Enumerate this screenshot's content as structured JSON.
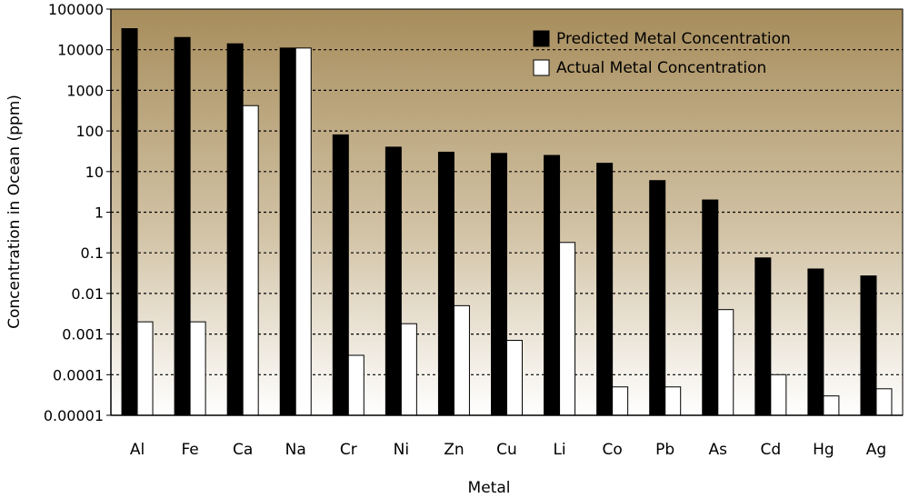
{
  "chart_data": {
    "type": "bar",
    "scale": "log",
    "xlabel": "Metal",
    "ylabel": "Concentration in Ocean  (ppm)",
    "ylim": [
      1e-05,
      100000
    ],
    "yticks": [
      "100000",
      "10000",
      "1000",
      "100",
      "10",
      "1",
      "0.1",
      "0.01",
      "0.001",
      "0.0001",
      "0.00001"
    ],
    "grid": "horizontal dotted",
    "legend_position": "top-right",
    "categories": [
      "Al",
      "Fe",
      "Ca",
      "Na",
      "Cr",
      "Ni",
      "Zn",
      "Cu",
      "Li",
      "Co",
      "Pb",
      "As",
      "Cd",
      "Hg",
      "Ag"
    ],
    "series": [
      {
        "name": "Predicted  Metal  Concentration",
        "color": "#000000",
        "values": [
          33000,
          20000,
          14000,
          11000,
          80,
          40,
          30,
          28,
          25,
          16,
          6,
          2,
          0.075,
          0.04,
          0.027
        ]
      },
      {
        "name": "Actual  Metal  Concentration",
        "color": "#ffffff",
        "values": [
          0.002,
          0.002,
          420,
          11000,
          0.0003,
          0.0018,
          0.005,
          0.0007,
          0.18,
          5e-05,
          5e-05,
          0.004,
          0.0001,
          3e-05,
          4.5e-05
        ]
      }
    ]
  }
}
